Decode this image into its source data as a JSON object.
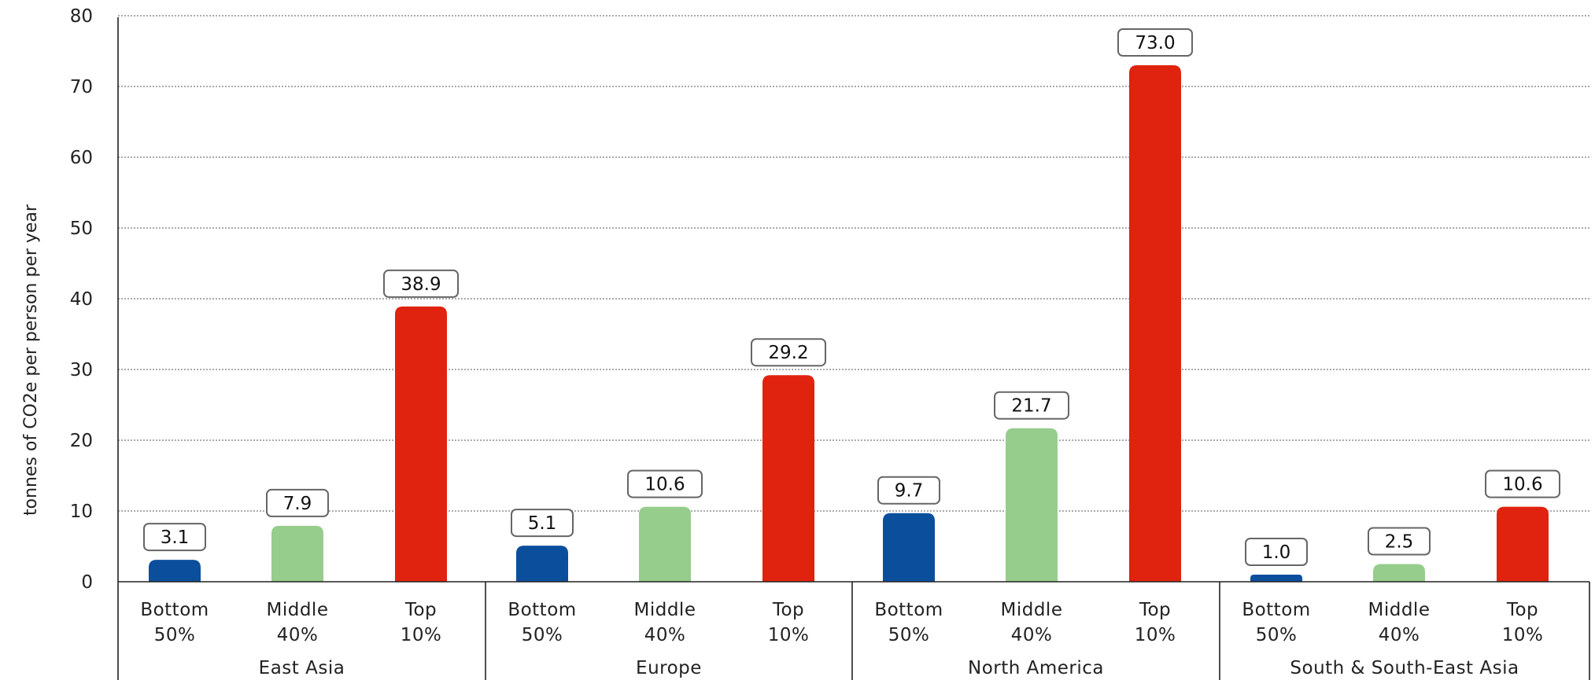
{
  "chart_data": {
    "type": "bar",
    "ylabel": "tonnes of CO2e per person per year",
    "ylim": [
      0,
      80
    ],
    "yticks": [
      0,
      10,
      20,
      30,
      40,
      50,
      60,
      70,
      80
    ],
    "grid": true,
    "gridlines": "dotted horizontal",
    "colors": {
      "bottom": "#0b4f9c",
      "middle": "#96cd8c",
      "top": "#e0230f"
    },
    "categories": [
      {
        "line1": "Bottom",
        "line2": "50%"
      },
      {
        "line1": "Middle",
        "line2": "40%"
      },
      {
        "line1": "Top",
        "line2": "10%"
      }
    ],
    "groups": [
      {
        "name": "East Asia",
        "values": [
          3.1,
          7.9,
          38.9
        ],
        "labels": [
          "3.1",
          "7.9",
          "38.9"
        ]
      },
      {
        "name": "Europe",
        "values": [
          5.1,
          10.6,
          29.2
        ],
        "labels": [
          "5.1",
          "10.6",
          "29.2"
        ]
      },
      {
        "name": "North America",
        "values": [
          9.7,
          21.7,
          73.0
        ],
        "labels": [
          "9.7",
          "21.7",
          "73.0"
        ]
      },
      {
        "name": "South & South-East Asia",
        "values": [
          1.0,
          2.5,
          10.6
        ],
        "labels": [
          "1.0",
          "2.5",
          "10.6"
        ]
      }
    ]
  }
}
